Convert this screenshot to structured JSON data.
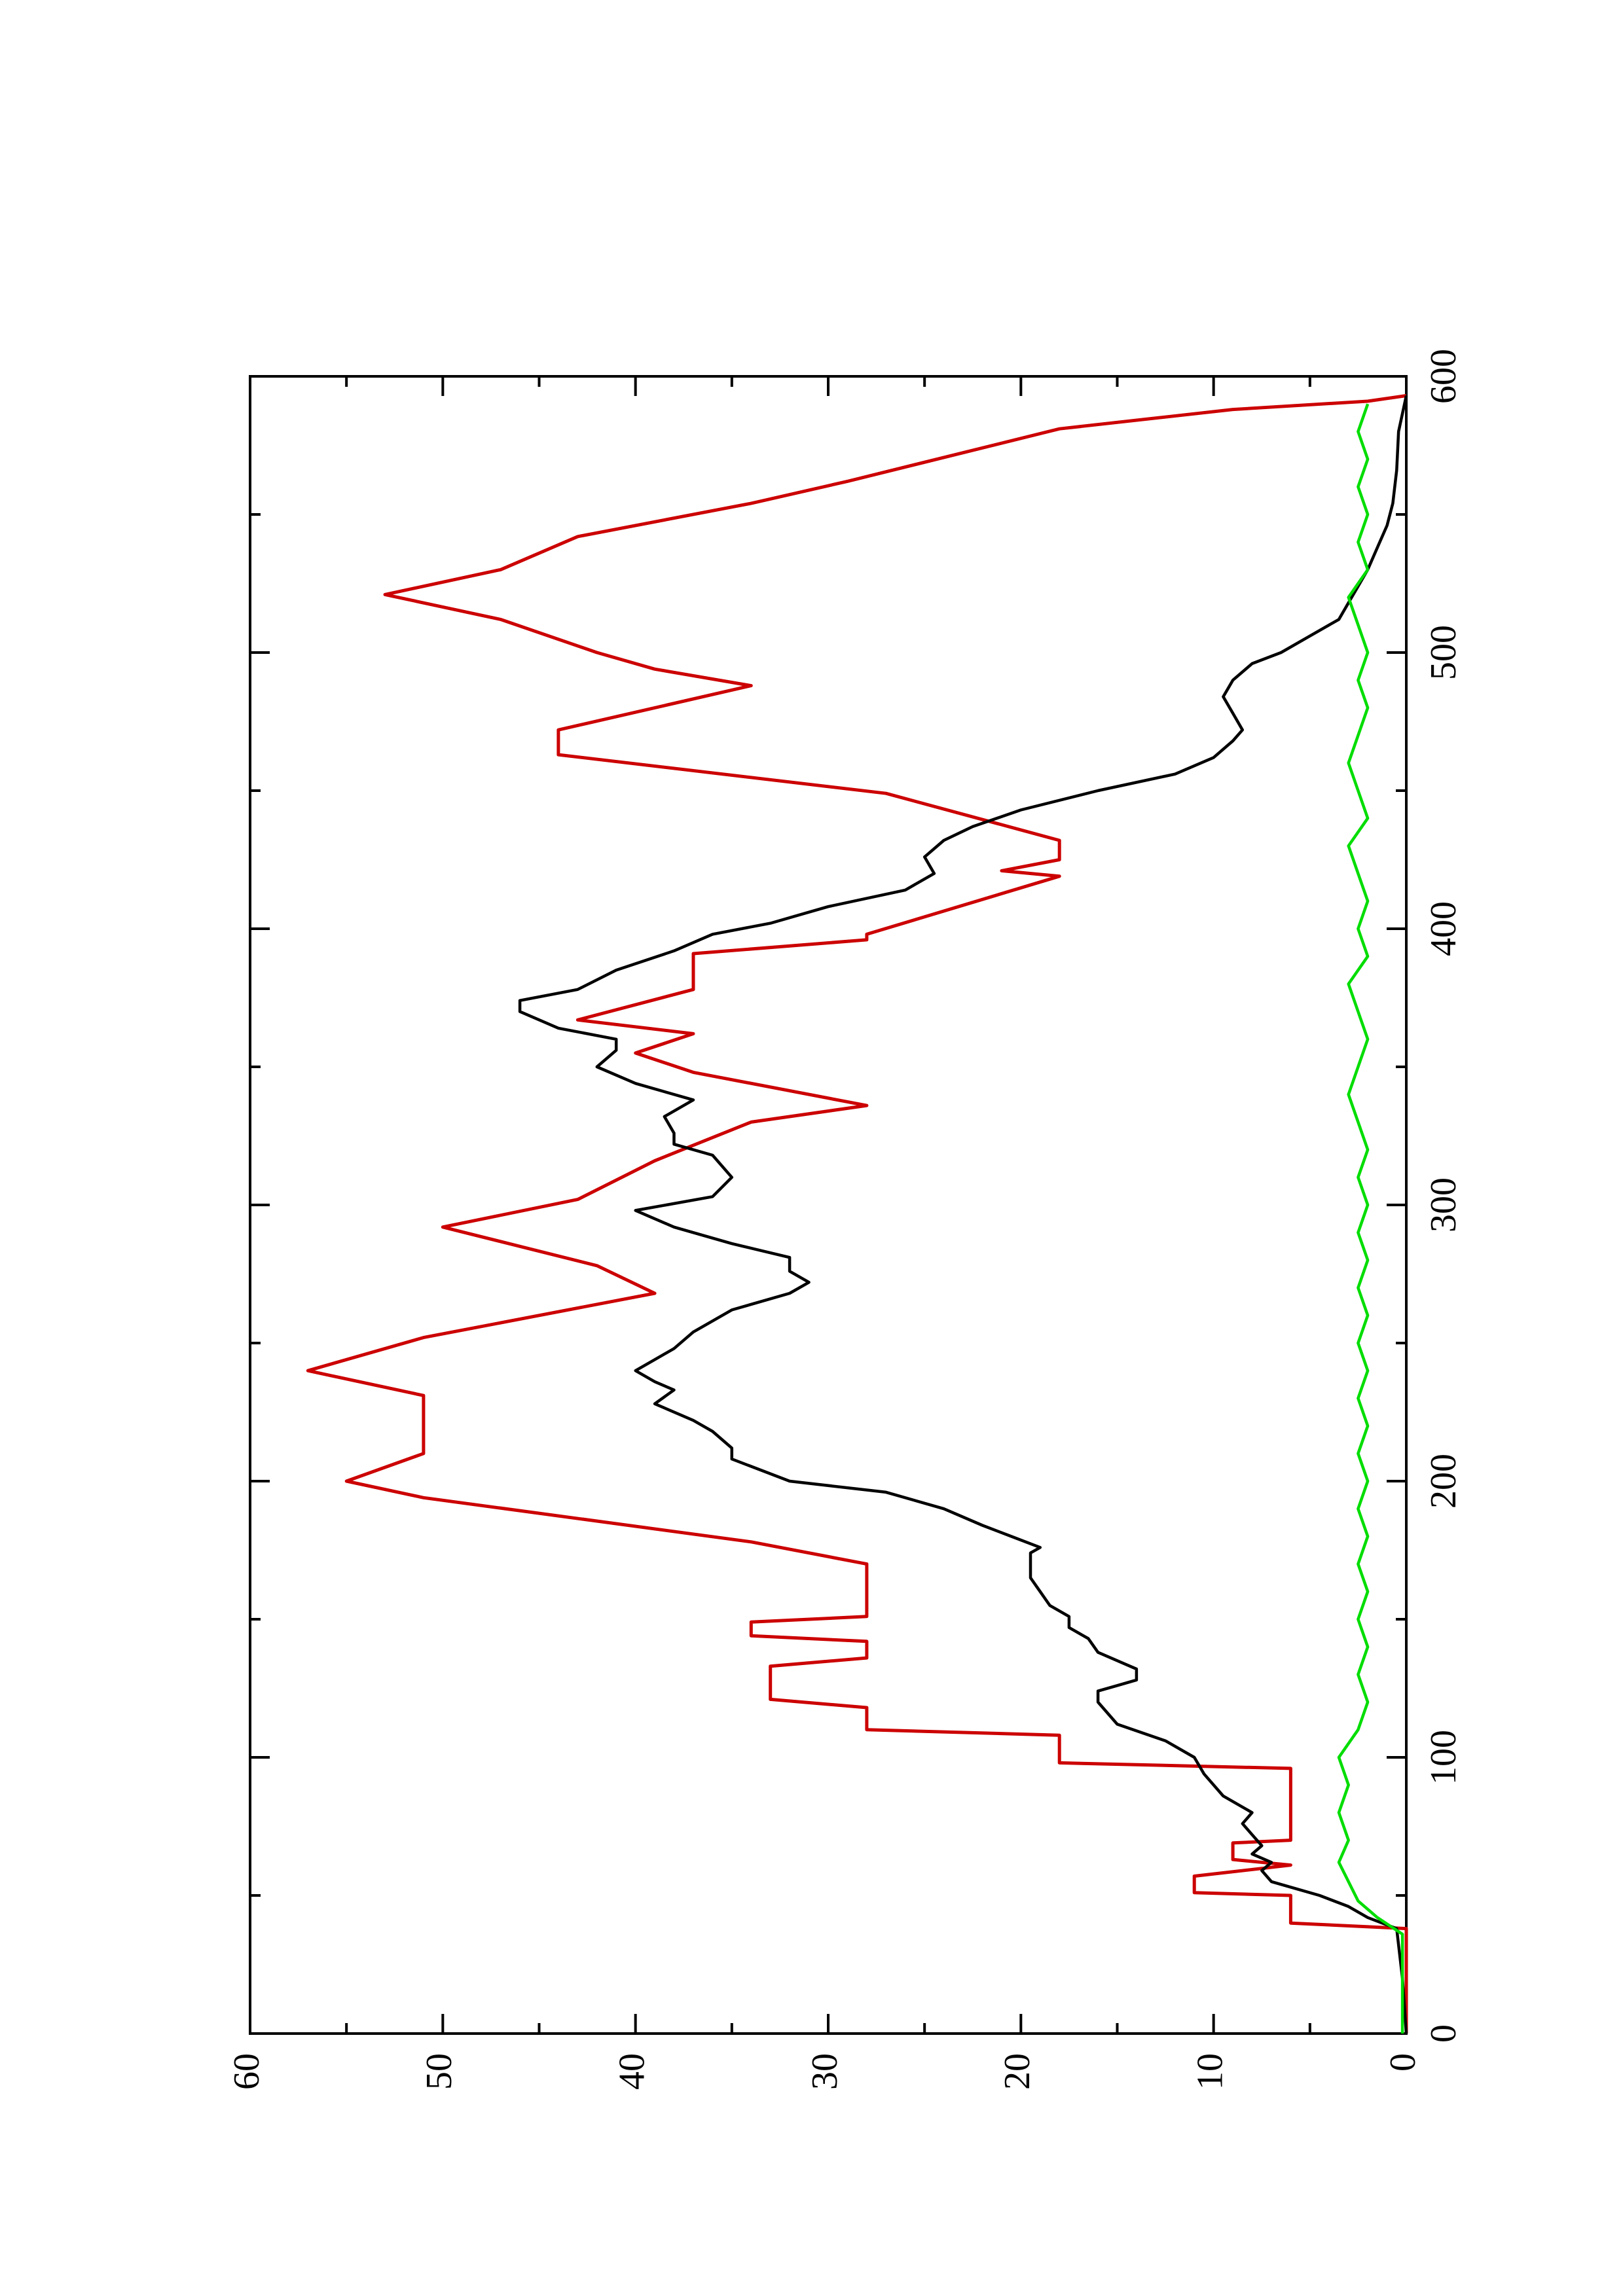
{
  "chart_data": {
    "type": "line",
    "orientation": "rotated-90-ccw",
    "title": "",
    "xlabel": "",
    "ylabel": "",
    "xlim": [
      0,
      600
    ],
    "ylim": [
      0,
      60
    ],
    "x_ticks": [
      0,
      100,
      200,
      300,
      400,
      500,
      600
    ],
    "y_ticks": [
      0,
      10,
      20,
      30,
      40,
      50,
      60
    ],
    "x_tick_labels": [
      "0",
      "100",
      "200",
      "300",
      "400",
      "500",
      "600"
    ],
    "y_tick_labels": [
      "0",
      "10",
      "20",
      "30",
      "40",
      "50",
      "60"
    ],
    "grid": false,
    "legend": "none",
    "series": [
      {
        "color": "#cc0000",
        "style": "step",
        "points": [
          [
            0,
            0
          ],
          [
            38,
            0
          ],
          [
            40,
            6
          ],
          [
            50,
            6
          ],
          [
            51,
            11
          ],
          [
            57,
            11
          ],
          [
            61,
            6
          ],
          [
            63,
            9
          ],
          [
            69,
            9
          ],
          [
            70,
            6
          ],
          [
            96,
            6
          ],
          [
            98,
            18
          ],
          [
            108,
            18
          ],
          [
            110,
            28
          ],
          [
            118,
            28
          ],
          [
            121,
            33
          ],
          [
            133,
            33
          ],
          [
            136,
            28
          ],
          [
            142,
            28
          ],
          [
            144,
            34
          ],
          [
            149,
            34
          ],
          [
            151,
            28
          ],
          [
            170,
            28
          ],
          [
            178,
            34
          ],
          [
            194,
            51
          ],
          [
            200,
            55
          ],
          [
            210,
            51
          ],
          [
            231,
            51
          ],
          [
            240,
            57
          ],
          [
            252,
            51
          ],
          [
            268,
            39
          ],
          [
            278,
            42
          ],
          [
            285,
            46
          ],
          [
            292,
            50
          ],
          [
            302,
            43
          ],
          [
            316,
            39
          ],
          [
            330,
            34
          ],
          [
            336,
            28
          ],
          [
            348,
            37
          ],
          [
            355,
            40
          ],
          [
            362,
            37
          ],
          [
            367,
            43
          ],
          [
            378,
            37
          ],
          [
            391,
            37
          ],
          [
            396,
            28
          ],
          [
            398,
            28
          ],
          [
            419,
            18
          ],
          [
            421,
            21
          ],
          [
            425,
            18
          ],
          [
            432,
            18
          ],
          [
            449,
            27
          ],
          [
            463,
            44
          ],
          [
            472,
            44
          ],
          [
            488,
            34
          ],
          [
            494,
            39
          ],
          [
            500,
            42
          ],
          [
            512,
            47
          ],
          [
            521,
            53
          ],
          [
            530,
            47
          ],
          [
            542,
            43
          ],
          [
            554,
            34
          ],
          [
            562,
            29
          ],
          [
            581,
            18
          ],
          [
            588,
            9
          ],
          [
            591,
            2
          ],
          [
            593,
            0
          ]
        ]
      },
      {
        "color": "#000000",
        "style": "line",
        "points": [
          [
            0,
            0
          ],
          [
            20,
            0.2
          ],
          [
            38,
            0.5
          ],
          [
            42,
            2
          ],
          [
            46,
            3
          ],
          [
            50,
            4.5
          ],
          [
            55,
            7
          ],
          [
            59,
            7.5
          ],
          [
            62,
            7
          ],
          [
            65,
            8
          ],
          [
            68,
            7.5
          ],
          [
            72,
            8
          ],
          [
            76,
            8.5
          ],
          [
            80,
            8
          ],
          [
            86,
            9.5
          ],
          [
            94,
            10.5
          ],
          [
            100,
            11
          ],
          [
            106,
            12.5
          ],
          [
            112,
            15
          ],
          [
            116,
            15.5
          ],
          [
            120,
            16
          ],
          [
            124,
            16
          ],
          [
            126,
            15
          ],
          [
            128,
            14
          ],
          [
            132,
            14
          ],
          [
            138,
            16
          ],
          [
            143,
            16.5
          ],
          [
            147,
            17.5
          ],
          [
            151,
            17.5
          ],
          [
            155,
            18.5
          ],
          [
            160,
            19
          ],
          [
            165,
            19.5
          ],
          [
            170,
            19.5
          ],
          [
            174,
            19.5
          ],
          [
            176,
            19
          ],
          [
            180,
            20.5
          ],
          [
            184,
            22
          ],
          [
            190,
            24
          ],
          [
            196,
            27
          ],
          [
            200,
            32
          ],
          [
            208,
            35
          ],
          [
            212,
            35
          ],
          [
            218,
            36
          ],
          [
            222,
            37
          ],
          [
            228,
            39
          ],
          [
            233,
            38
          ],
          [
            236,
            39
          ],
          [
            240,
            40
          ],
          [
            244,
            39
          ],
          [
            248,
            38
          ],
          [
            254,
            37
          ],
          [
            262,
            35
          ],
          [
            268,
            32
          ],
          [
            272,
            31
          ],
          [
            276,
            32
          ],
          [
            281,
            32
          ],
          [
            286,
            35
          ],
          [
            292,
            38
          ],
          [
            298,
            40
          ],
          [
            303,
            36
          ],
          [
            310,
            35
          ],
          [
            318,
            36
          ],
          [
            322,
            38
          ],
          [
            326,
            38
          ],
          [
            332,
            38.5
          ],
          [
            338,
            37
          ],
          [
            344,
            40
          ],
          [
            350,
            42
          ],
          [
            356,
            41
          ],
          [
            360,
            41
          ],
          [
            364,
            44
          ],
          [
            370,
            46
          ],
          [
            374,
            46
          ],
          [
            378,
            43
          ],
          [
            385,
            41
          ],
          [
            392,
            38
          ],
          [
            398,
            36
          ],
          [
            402,
            33
          ],
          [
            408,
            30
          ],
          [
            414,
            26
          ],
          [
            420,
            24.5
          ],
          [
            426,
            25
          ],
          [
            432,
            24
          ],
          [
            437,
            22.5
          ],
          [
            443,
            20
          ],
          [
            450,
            16
          ],
          [
            456,
            12
          ],
          [
            462,
            10
          ],
          [
            468,
            9
          ],
          [
            472,
            8.5
          ],
          [
            478,
            9
          ],
          [
            484,
            9.5
          ],
          [
            490,
            9
          ],
          [
            496,
            8
          ],
          [
            500,
            6.5
          ],
          [
            506,
            5
          ],
          [
            512,
            3.5
          ],
          [
            518,
            3
          ],
          [
            524,
            2.5
          ],
          [
            530,
            2
          ],
          [
            538,
            1.5
          ],
          [
            546,
            1
          ],
          [
            554,
            0.7
          ],
          [
            566,
            0.5
          ],
          [
            580,
            0.4
          ],
          [
            593,
            0
          ]
        ]
      },
      {
        "color": "#00dd00",
        "style": "line",
        "points": [
          [
            0,
            0.2
          ],
          [
            36,
            0.2
          ],
          [
            42,
            1.5
          ],
          [
            48,
            2.5
          ],
          [
            55,
            3
          ],
          [
            62,
            3.5
          ],
          [
            70,
            3
          ],
          [
            80,
            3.5
          ],
          [
            90,
            3
          ],
          [
            100,
            3.5
          ],
          [
            110,
            2.5
          ],
          [
            120,
            2
          ],
          [
            130,
            2.5
          ],
          [
            140,
            2
          ],
          [
            150,
            2.5
          ],
          [
            160,
            2
          ],
          [
            170,
            2.5
          ],
          [
            180,
            2
          ],
          [
            190,
            2.5
          ],
          [
            200,
            2
          ],
          [
            210,
            2.5
          ],
          [
            220,
            2
          ],
          [
            230,
            2.5
          ],
          [
            240,
            2
          ],
          [
            250,
            2.5
          ],
          [
            260,
            2
          ],
          [
            270,
            2.5
          ],
          [
            280,
            2
          ],
          [
            290,
            2.5
          ],
          [
            300,
            2
          ],
          [
            310,
            2.5
          ],
          [
            320,
            2
          ],
          [
            330,
            2.5
          ],
          [
            340,
            3
          ],
          [
            350,
            2.5
          ],
          [
            360,
            2
          ],
          [
            370,
            2.5
          ],
          [
            380,
            3
          ],
          [
            390,
            2
          ],
          [
            400,
            2.5
          ],
          [
            410,
            2
          ],
          [
            420,
            2.5
          ],
          [
            430,
            3
          ],
          [
            440,
            2
          ],
          [
            450,
            2.5
          ],
          [
            460,
            3
          ],
          [
            470,
            2.5
          ],
          [
            480,
            2
          ],
          [
            490,
            2.5
          ],
          [
            500,
            2
          ],
          [
            510,
            2.5
          ],
          [
            520,
            3
          ],
          [
            530,
            2
          ],
          [
            540,
            2.5
          ],
          [
            550,
            2
          ],
          [
            560,
            2.5
          ],
          [
            570,
            2
          ],
          [
            580,
            2.5
          ],
          [
            590,
            2
          ]
        ]
      }
    ]
  }
}
